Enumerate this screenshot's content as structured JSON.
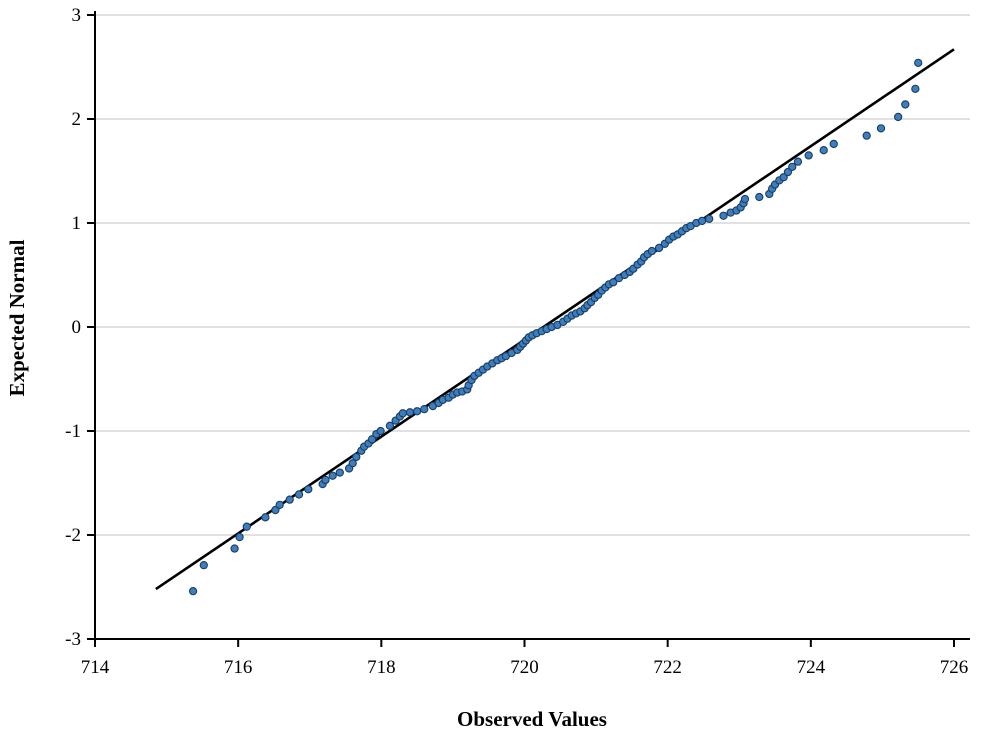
{
  "chart_data": {
    "type": "scatter",
    "title": "",
    "xlabel": "Observed Values",
    "ylabel": "Expected Normal",
    "xlim": [
      714,
      726
    ],
    "ylim": [
      -3,
      3
    ],
    "x_ticks": [
      714,
      716,
      718,
      720,
      722,
      724,
      726
    ],
    "y_ticks": [
      -3,
      -2,
      -1,
      0,
      1,
      2,
      3
    ],
    "grid": "horizontal",
    "point_color": "#3a7fc1",
    "point_edge_color": "#1f3b5c",
    "line_color": "#000000",
    "reference_line": {
      "name": "Normal reference line",
      "x": [
        714.85,
        726.0
      ],
      "y": [
        -2.52,
        2.67
      ]
    },
    "series": [
      {
        "name": "Observed vs Expected Normal",
        "points": [
          [
            715.37,
            -2.54
          ],
          [
            715.52,
            -2.29
          ],
          [
            715.95,
            -2.13
          ],
          [
            716.02,
            -2.02
          ],
          [
            716.12,
            -1.92
          ],
          [
            716.38,
            -1.83
          ],
          [
            716.52,
            -1.76
          ],
          [
            716.58,
            -1.71
          ],
          [
            716.72,
            -1.66
          ],
          [
            716.85,
            -1.61
          ],
          [
            716.98,
            -1.56
          ],
          [
            717.18,
            -1.51
          ],
          [
            717.22,
            -1.47
          ],
          [
            717.32,
            -1.43
          ],
          [
            717.42,
            -1.4
          ],
          [
            717.55,
            -1.36
          ],
          [
            717.6,
            -1.31
          ],
          [
            717.65,
            -1.25
          ],
          [
            717.72,
            -1.19
          ],
          [
            717.76,
            -1.15
          ],
          [
            717.82,
            -1.12
          ],
          [
            717.87,
            -1.08
          ],
          [
            717.93,
            -1.03
          ],
          [
            717.99,
            -1.0
          ],
          [
            718.12,
            -0.95
          ],
          [
            718.2,
            -0.9
          ],
          [
            718.26,
            -0.86
          ],
          [
            718.3,
            -0.83
          ],
          [
            718.4,
            -0.82
          ],
          [
            718.5,
            -0.81
          ],
          [
            718.6,
            -0.79
          ],
          [
            718.72,
            -0.76
          ],
          [
            718.8,
            -0.73
          ],
          [
            718.86,
            -0.7
          ],
          [
            718.94,
            -0.68
          ],
          [
            719.0,
            -0.65
          ],
          [
            719.06,
            -0.63
          ],
          [
            719.13,
            -0.62
          ],
          [
            719.2,
            -0.6
          ],
          [
            719.22,
            -0.56
          ],
          [
            719.26,
            -0.51
          ],
          [
            719.3,
            -0.47
          ],
          [
            719.36,
            -0.44
          ],
          [
            719.42,
            -0.41
          ],
          [
            719.48,
            -0.38
          ],
          [
            719.55,
            -0.35
          ],
          [
            719.62,
            -0.32
          ],
          [
            719.68,
            -0.3
          ],
          [
            719.74,
            -0.28
          ],
          [
            719.82,
            -0.25
          ],
          [
            719.9,
            -0.22
          ],
          [
            719.94,
            -0.19
          ],
          [
            719.98,
            -0.16
          ],
          [
            720.02,
            -0.13
          ],
          [
            720.06,
            -0.1
          ],
          [
            720.11,
            -0.08
          ],
          [
            720.17,
            -0.06
          ],
          [
            720.24,
            -0.04
          ],
          [
            720.31,
            -0.02
          ],
          [
            720.38,
            0.0
          ],
          [
            720.46,
            0.02
          ],
          [
            720.54,
            0.05
          ],
          [
            720.6,
            0.08
          ],
          [
            720.66,
            0.11
          ],
          [
            720.72,
            0.13
          ],
          [
            720.78,
            0.15
          ],
          [
            720.84,
            0.18
          ],
          [
            720.88,
            0.21
          ],
          [
            720.93,
            0.24
          ],
          [
            720.98,
            0.28
          ],
          [
            721.03,
            0.31
          ],
          [
            721.08,
            0.35
          ],
          [
            721.13,
            0.38
          ],
          [
            721.18,
            0.41
          ],
          [
            721.24,
            0.43
          ],
          [
            721.32,
            0.47
          ],
          [
            721.4,
            0.5
          ],
          [
            721.47,
            0.53
          ],
          [
            721.52,
            0.56
          ],
          [
            721.58,
            0.6
          ],
          [
            721.63,
            0.63
          ],
          [
            721.67,
            0.67
          ],
          [
            721.72,
            0.7
          ],
          [
            721.78,
            0.73
          ],
          [
            721.88,
            0.76
          ],
          [
            721.96,
            0.8
          ],
          [
            722.02,
            0.84
          ],
          [
            722.08,
            0.87
          ],
          [
            722.14,
            0.89
          ],
          [
            722.2,
            0.92
          ],
          [
            722.26,
            0.95
          ],
          [
            722.32,
            0.97
          ],
          [
            722.4,
            1.0
          ],
          [
            722.48,
            1.02
          ],
          [
            722.58,
            1.04
          ],
          [
            722.78,
            1.07
          ],
          [
            722.88,
            1.1
          ],
          [
            722.96,
            1.12
          ],
          [
            723.02,
            1.15
          ],
          [
            723.06,
            1.19
          ],
          [
            723.08,
            1.23
          ],
          [
            723.28,
            1.25
          ],
          [
            723.42,
            1.28
          ],
          [
            723.46,
            1.33
          ],
          [
            723.5,
            1.37
          ],
          [
            723.56,
            1.41
          ],
          [
            723.62,
            1.44
          ],
          [
            723.68,
            1.49
          ],
          [
            723.74,
            1.54
          ],
          [
            723.82,
            1.59
          ],
          [
            723.97,
            1.65
          ],
          [
            724.18,
            1.7
          ],
          [
            724.32,
            1.76
          ],
          [
            724.78,
            1.84
          ],
          [
            724.98,
            1.91
          ],
          [
            725.22,
            2.02
          ],
          [
            725.32,
            2.14
          ],
          [
            725.46,
            2.29
          ],
          [
            725.5,
            2.54
          ]
        ]
      }
    ]
  }
}
